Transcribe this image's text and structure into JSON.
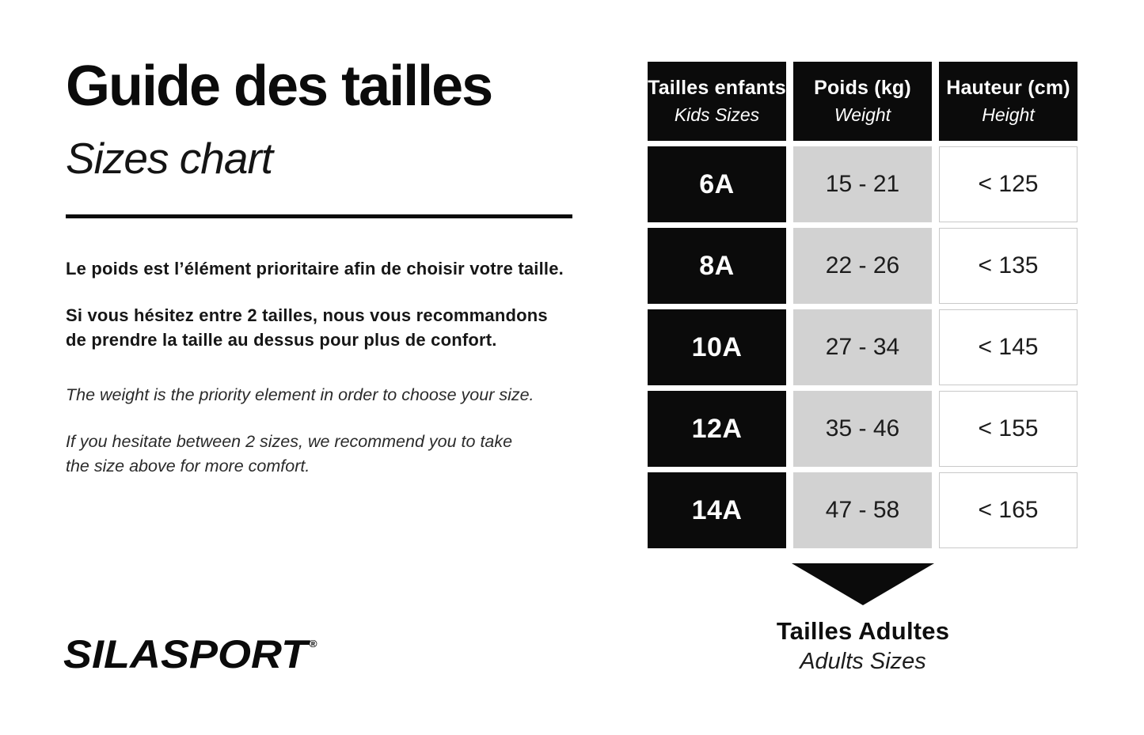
{
  "title": {
    "fr": "Guide des tailles",
    "en": "Sizes chart"
  },
  "intro": {
    "fr1": "Le poids est l’élément prioritaire afin de choisir votre taille.",
    "fr2": "Si vous hésitez entre 2 tailles, nous vous recommandons\nde prendre la taille au dessus pour plus de confort.",
    "en1": "The weight is the priority element in order to choose your size.",
    "en2": "If you hesitate between 2 sizes, we recommend you to take\nthe size above for more comfort."
  },
  "logo": {
    "text": "SILASPORT",
    "registered": "®"
  },
  "table": {
    "headers": [
      {
        "fr": "Tailles enfants",
        "en": "Kids Sizes"
      },
      {
        "fr": "Poids (kg)",
        "en": "Weight"
      },
      {
        "fr": "Hauteur (cm)",
        "en": "Height"
      }
    ],
    "rows": [
      {
        "size": "6A",
        "weight": "15 - 21",
        "height": "< 125"
      },
      {
        "size": "8A",
        "weight": "22 - 26",
        "height": "< 135"
      },
      {
        "size": "10A",
        "weight": "27 - 34",
        "height": "< 145"
      },
      {
        "size": "12A",
        "weight": "35 - 46",
        "height": "< 155"
      },
      {
        "size": "14A",
        "weight": "47 - 58",
        "height": "< 165"
      }
    ]
  },
  "footer": {
    "arrow_icon": "down-triangle",
    "fr": "Tailles Adultes",
    "en": "Adults Sizes"
  },
  "colors": {
    "black": "#0b0b0b",
    "gray_cell": "#d2d2d2",
    "white_cell_border": "#c9c9c9",
    "text_dark": "#1c1c1c",
    "background": "#ffffff"
  }
}
